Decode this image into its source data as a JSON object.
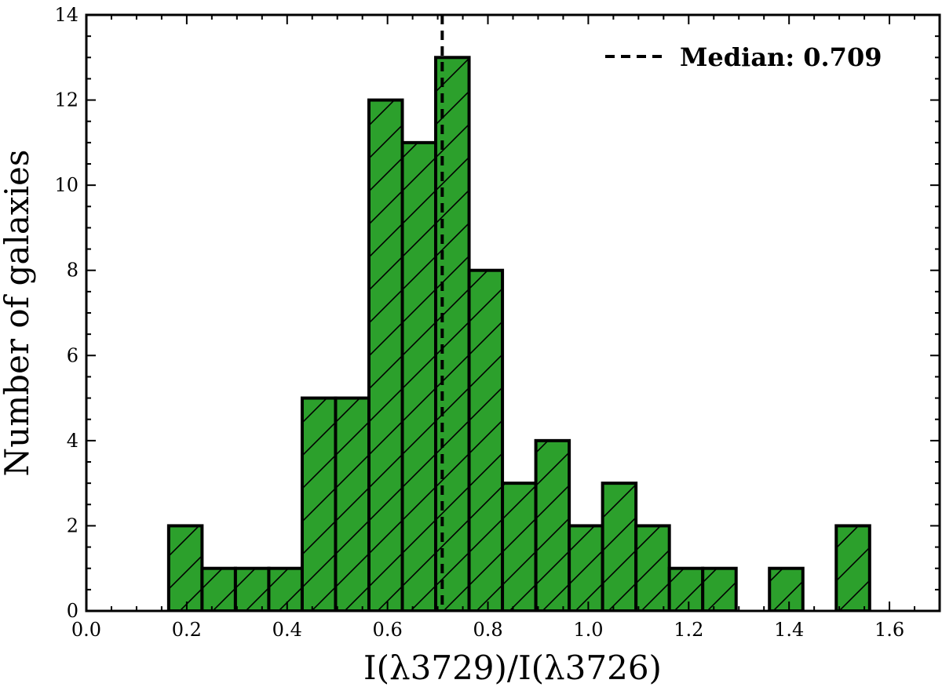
{
  "chart_data": {
    "type": "bar",
    "histogram": true,
    "xlabel": "I(λ3729)/I(λ3726)",
    "ylabel": "Number of galaxies",
    "xlim": [
      0.0,
      1.7
    ],
    "ylim": [
      0,
      14
    ],
    "xticks": [
      "0.0",
      "0.2",
      "0.4",
      "0.6",
      "0.8",
      "1.0",
      "1.2",
      "1.4",
      "1.6"
    ],
    "yticks": [
      "0",
      "2",
      "4",
      "6",
      "8",
      "10",
      "12",
      "14"
    ],
    "bin_edges": [
      0.164,
      0.2305,
      0.297,
      0.3635,
      0.43,
      0.4965,
      0.563,
      0.6295,
      0.696,
      0.7625,
      0.829,
      0.8955,
      0.962,
      1.0285,
      1.095,
      1.1615,
      1.228,
      1.2945,
      1.361,
      1.4275,
      1.494,
      1.5605
    ],
    "counts": [
      2,
      1,
      1,
      1,
      5,
      5,
      12,
      11,
      13,
      8,
      3,
      4,
      2,
      3,
      2,
      1,
      1,
      0,
      1,
      0,
      2
    ],
    "median": 0.709,
    "fill_color": "#2ca02c",
    "hatch": "diagonal /",
    "grid": false,
    "legend": {
      "position": "top-right",
      "label": "Median: 0.709",
      "style": "dashed black line"
    }
  }
}
